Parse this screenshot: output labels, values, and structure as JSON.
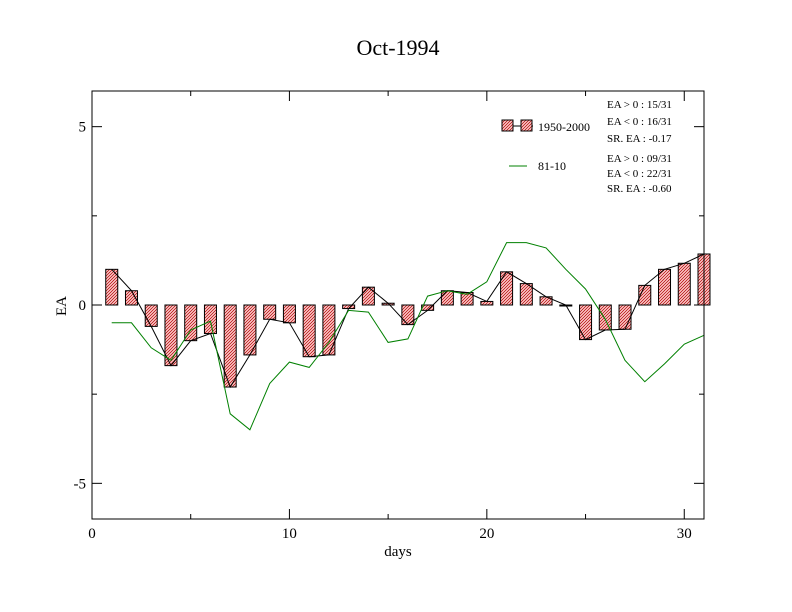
{
  "chart_data": {
    "type": "bar",
    "title": "Oct-1994",
    "xlabel": "days",
    "ylabel": "EA",
    "xlim": [
      0,
      31
    ],
    "ylim": [
      -6,
      6
    ],
    "xticks": [
      0,
      10,
      20,
      30
    ],
    "xtick_labels": [
      "0",
      "10",
      "20",
      "30"
    ],
    "yticks": [
      -5,
      0,
      5
    ],
    "ytick_labels": [
      "-5",
      "0",
      "5"
    ],
    "grid": false,
    "legend_position": "top-right",
    "x": [
      1,
      2,
      3,
      4,
      5,
      6,
      7,
      8,
      9,
      10,
      11,
      12,
      13,
      14,
      15,
      16,
      17,
      18,
      19,
      20,
      21,
      22,
      23,
      24,
      25,
      26,
      27,
      28,
      29,
      30,
      31
    ],
    "series": [
      {
        "name": "1950-2000",
        "kind": "bar",
        "color": "#e06060",
        "values": [
          1.0,
          0.4,
          -0.6,
          -1.7,
          -1.0,
          -0.8,
          -2.3,
          -1.4,
          -0.4,
          -0.5,
          -1.45,
          -1.4,
          -0.1,
          0.5,
          0.05,
          -0.55,
          -0.15,
          0.4,
          0.35,
          0.1,
          0.93,
          0.6,
          0.23,
          0.0,
          -0.97,
          -0.7,
          -0.68,
          0.55,
          1.0,
          1.17,
          1.43
        ]
      },
      {
        "name": "81-10",
        "kind": "line",
        "color": "#008000",
        "values": [
          -0.5,
          -0.5,
          -1.2,
          -1.55,
          -0.7,
          -0.45,
          -3.05,
          -3.5,
          -2.2,
          -1.6,
          -1.75,
          -1.05,
          -0.15,
          -0.2,
          -1.05,
          -0.95,
          0.25,
          0.4,
          0.3,
          0.65,
          1.75,
          1.75,
          1.6,
          1.0,
          0.45,
          -0.4,
          -1.55,
          -2.15,
          -1.65,
          -1.1,
          -0.85
        ]
      }
    ],
    "stats": [
      {
        "lines": [
          "EA > 0 : 15/31",
          "EA < 0 : 16/31",
          "SR. EA : -0.17"
        ]
      },
      {
        "lines": [
          "EA > 0 : 09/31",
          "EA < 0 : 22/31",
          "SR. EA : -0.60"
        ]
      }
    ]
  }
}
